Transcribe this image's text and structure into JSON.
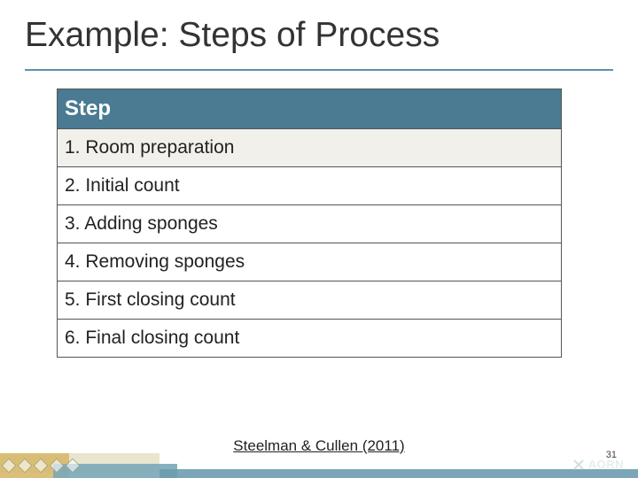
{
  "title": "Example: Steps of Process",
  "table": {
    "header": "Step",
    "header_bg": "#4a7b92",
    "header_text_color": "#ffffff",
    "row_alt_bg": "#f1f0eb",
    "border_color": "#555555",
    "rows": [
      "1. Room preparation",
      "2. Initial count",
      "3. Adding sponges",
      "4. Removing sponges",
      "5. First closing count",
      "6. Final closing count"
    ]
  },
  "citation": "Steelman & Cullen (2011)",
  "logo_text": "AORN",
  "slide_number": "31",
  "colors": {
    "title_underline": "#5a93b0",
    "text": "#222222",
    "footer_blue": "#6e9caf",
    "footer_tan": "#e6e0c6",
    "footer_gold": "#d8b86a"
  }
}
